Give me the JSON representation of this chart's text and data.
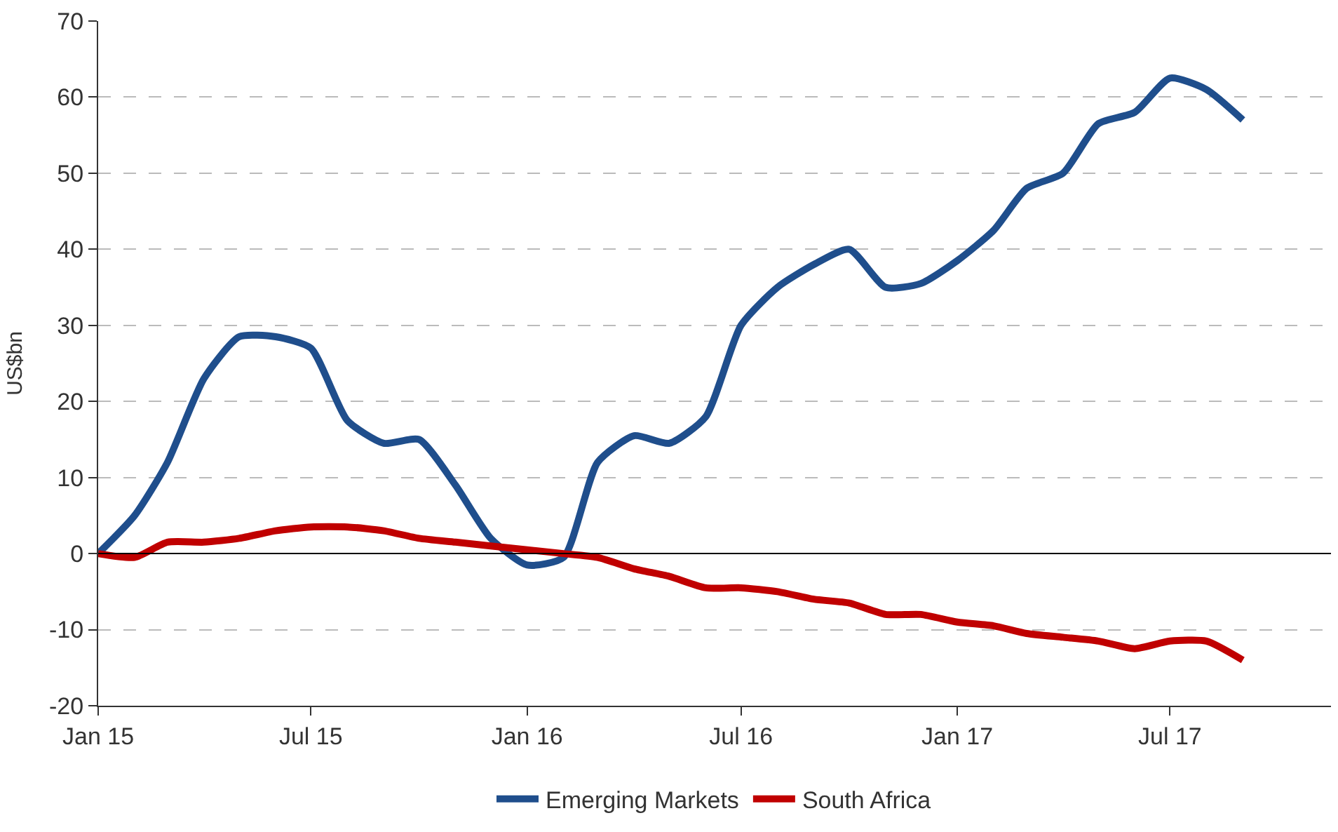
{
  "chart_data": {
    "type": "line",
    "ylabel": "US$bn",
    "x": [
      "2015-01",
      "2015-02",
      "2015-03",
      "2015-04",
      "2015-05",
      "2015-06",
      "2015-07",
      "2015-08",
      "2015-09",
      "2015-10",
      "2015-11",
      "2015-12",
      "2016-01",
      "2016-02",
      "2016-03",
      "2016-04",
      "2016-05",
      "2016-06",
      "2016-07",
      "2016-08",
      "2016-09",
      "2016-10",
      "2016-11",
      "2016-12",
      "2017-01",
      "2017-02",
      "2017-03",
      "2017-04",
      "2017-05",
      "2017-06",
      "2017-07",
      "2017-08",
      "2017-09"
    ],
    "series": [
      {
        "name": "Emerging Markets",
        "color": "#1f4e8c",
        "values": [
          0,
          5,
          12,
          23,
          28.5,
          28.5,
          27,
          17.5,
          14.5,
          15,
          9,
          2,
          -1.5,
          -0.5,
          12,
          15.5,
          14.5,
          18,
          30,
          35,
          38,
          40,
          35,
          35.5,
          38.5,
          42.5,
          48,
          50,
          56.5,
          58,
          62.5,
          61,
          57
        ]
      },
      {
        "name": "South Africa",
        "color": "#c00000",
        "values": [
          0,
          -0.5,
          1.5,
          1.5,
          2,
          3,
          3.5,
          3.5,
          3,
          2,
          1.5,
          1,
          0.5,
          0,
          -0.5,
          -2,
          -3,
          -4.5,
          -4.5,
          -5,
          -6,
          -6.5,
          -8,
          -8,
          -9,
          -9.5,
          -10.5,
          -11,
          -11.5,
          -12.5,
          -11.5,
          -11.5,
          -14
        ]
      }
    ],
    "xlim": [
      "2015-01",
      "2017-11-15"
    ],
    "xticks": [
      {
        "value": "2015-01",
        "label": "Jan 15"
      },
      {
        "value": "2015-07",
        "label": "Jul 15"
      },
      {
        "value": "2016-01",
        "label": "Jan 16"
      },
      {
        "value": "2016-07",
        "label": "Jul 16"
      },
      {
        "value": "2017-01",
        "label": "Jan 17"
      },
      {
        "value": "2017-07",
        "label": "Jul 17"
      }
    ],
    "ylim": [
      -20,
      70
    ],
    "yticks": [
      -20,
      -10,
      0,
      10,
      20,
      30,
      40,
      50,
      60,
      70
    ],
    "ref_lines": [
      {
        "axis": "y",
        "value": 0,
        "color": "#000000"
      }
    ],
    "grid": "y",
    "legend": "bottom",
    "marker": "none",
    "line_style": "solid"
  }
}
